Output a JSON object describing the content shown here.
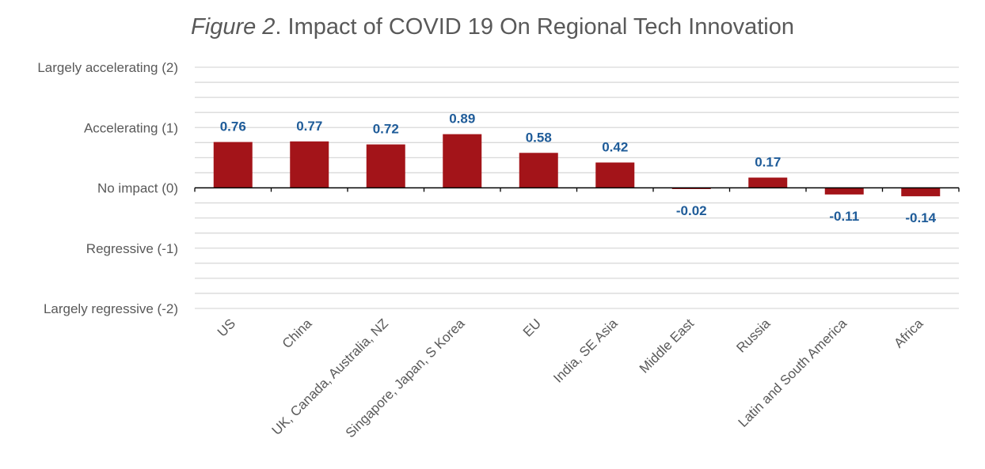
{
  "chart_data": {
    "type": "bar",
    "title_prefix": "Figure 2",
    "title_rest": ". Impact of COVID 19 On Regional Tech Innovation",
    "categories": [
      "US",
      "China",
      "UK, Canada, Australia, NZ",
      "Singapore, Japan,  S Korea",
      "EU",
      "India, SE Asia",
      "Middle East",
      "Russia",
      "Latin and South America",
      "Africa"
    ],
    "values": [
      0.76,
      0.77,
      0.72,
      0.89,
      0.58,
      0.42,
      -0.02,
      0.17,
      -0.11,
      -0.14
    ],
    "data_labels": [
      "0.76",
      "0.77",
      "0.72",
      "0.89",
      "0.58",
      "0.42",
      "-0.02",
      "0.17",
      "-0.11",
      "-0.14"
    ],
    "ylim": [
      -2,
      2
    ],
    "yticks": [
      {
        "value": 2,
        "label": "Largely accelerating  (2)"
      },
      {
        "value": 1,
        "label": "Accelerating (1)"
      },
      {
        "value": 0,
        "label": "No impact (0)"
      },
      {
        "value": -1,
        "label": "Regressive (-1)"
      },
      {
        "value": -2,
        "label": "Largely regressive (-2)"
      }
    ],
    "minor_gridline_step": 0.25,
    "grid": true,
    "legend": "none",
    "colors": {
      "bar": "#a31419",
      "label": "#1f5c99",
      "grid": "#d9d9d9",
      "axis": "#000000",
      "text": "#595959"
    }
  }
}
